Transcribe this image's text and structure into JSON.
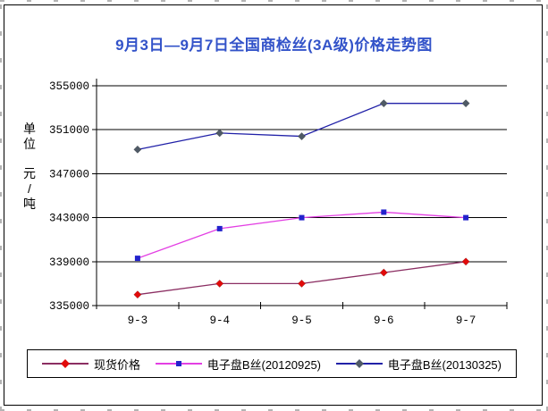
{
  "chart": {
    "title": "9月3日—9月7日全国商检丝(3A级)价格走势图",
    "title_color": "#3353C9",
    "y_unit_top": "单位",
    "y_unit_bottom": "元/吨"
  },
  "chart_data": {
    "type": "line",
    "title": "9月3日—9月7日全国商检丝(3A级)价格走势图",
    "categories": [
      "9-3",
      "9-4",
      "9-5",
      "9-6",
      "9-7"
    ],
    "series": [
      {
        "name": "现货价格",
        "values": [
          336000,
          337000,
          337000,
          338000,
          339000
        ],
        "line_color": "#8B2E62",
        "marker": "diamond",
        "marker_color": "#E10A0A"
      },
      {
        "name": "电子盘B丝(20120925)",
        "values": [
          339300,
          342000,
          343000,
          343500,
          343000
        ],
        "line_color": "#E33FE3",
        "marker": "square",
        "marker_color": "#2222CC"
      },
      {
        "name": "电子盘B丝(20130325)",
        "values": [
          349200,
          350700,
          350400,
          353400,
          353400
        ],
        "line_color": "#2121A8",
        "marker": "diamond",
        "marker_color": "#4F5A66"
      }
    ],
    "xlabel": "",
    "ylabel": "单位 元/吨",
    "ylim": [
      335000,
      355000
    ],
    "ytick_step": 4000,
    "yticks": [
      "355000",
      "351000",
      "347000",
      "343000",
      "339000",
      "335000"
    ],
    "grid": true,
    "legend_position": "bottom"
  }
}
